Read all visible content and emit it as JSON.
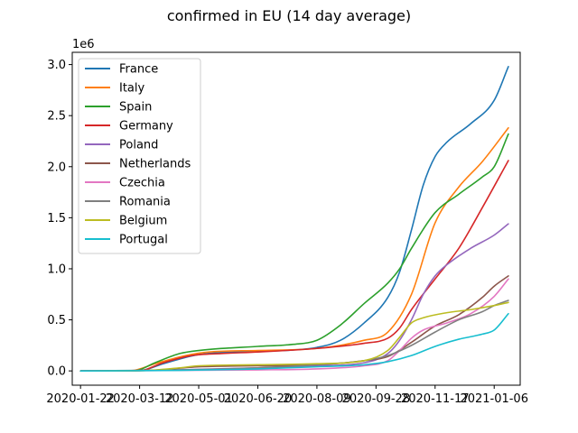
{
  "chart_data": {
    "type": "line",
    "title": "confirmed in EU (14 day average)",
    "xlabel": "",
    "ylabel": "",
    "y_multiplier_label": "1e6",
    "x_ticks": [
      "2020-01-22",
      "2020-03-12",
      "2020-05-01",
      "2020-06-20",
      "2020-08-09",
      "2020-09-28",
      "2020-11-17",
      "2021-01-06"
    ],
    "y_ticks": [
      "0.0",
      "0.5",
      "1.0",
      "1.5",
      "2.0",
      "2.5",
      "3.0"
    ],
    "xlim": [
      "2020-01-15",
      "2021-01-28"
    ],
    "ylim": [
      -0.14,
      3.12
    ],
    "grid": false,
    "legend_position": "top-left",
    "series": [
      {
        "name": "France",
        "color": "#1f77b4",
        "points": [
          [
            "2020-01-22",
            0
          ],
          [
            "2020-03-12",
            0.003
          ],
          [
            "2020-04-01",
            0.07
          ],
          [
            "2020-05-01",
            0.16
          ],
          [
            "2020-06-20",
            0.19
          ],
          [
            "2020-07-20",
            0.205
          ],
          [
            "2020-08-09",
            0.23
          ],
          [
            "2020-08-29",
            0.3
          ],
          [
            "2020-09-18",
            0.47
          ],
          [
            "2020-10-08",
            0.72
          ],
          [
            "2020-10-18",
            0.97
          ],
          [
            "2020-10-28",
            1.38
          ],
          [
            "2020-11-07",
            1.82
          ],
          [
            "2020-11-17",
            2.1
          ],
          [
            "2020-11-27",
            2.24
          ],
          [
            "2020-12-17",
            2.42
          ],
          [
            "2021-01-06",
            2.65
          ],
          [
            "2021-01-18",
            2.98
          ]
        ]
      },
      {
        "name": "Italy",
        "color": "#ff7f0e",
        "points": [
          [
            "2020-01-22",
            0
          ],
          [
            "2020-03-05",
            0.003
          ],
          [
            "2020-03-25",
            0.07
          ],
          [
            "2020-04-20",
            0.15
          ],
          [
            "2020-05-10",
            0.185
          ],
          [
            "2020-06-20",
            0.2
          ],
          [
            "2020-08-09",
            0.22
          ],
          [
            "2020-09-18",
            0.3
          ],
          [
            "2020-10-08",
            0.38
          ],
          [
            "2020-10-28",
            0.75
          ],
          [
            "2020-11-17",
            1.45
          ],
          [
            "2020-12-07",
            1.8
          ],
          [
            "2020-12-27",
            2.05
          ],
          [
            "2021-01-18",
            2.38
          ]
        ]
      },
      {
        "name": "Spain",
        "color": "#2ca02c",
        "points": [
          [
            "2020-01-22",
            0
          ],
          [
            "2020-03-08",
            0.003
          ],
          [
            "2020-03-25",
            0.08
          ],
          [
            "2020-04-15",
            0.17
          ],
          [
            "2020-05-01",
            0.2
          ],
          [
            "2020-06-20",
            0.24
          ],
          [
            "2020-07-20",
            0.26
          ],
          [
            "2020-08-09",
            0.3
          ],
          [
            "2020-08-29",
            0.45
          ],
          [
            "2020-09-18",
            0.66
          ],
          [
            "2020-10-08",
            0.86
          ],
          [
            "2020-10-18",
            1.0
          ],
          [
            "2020-10-28",
            1.2
          ],
          [
            "2020-11-17",
            1.55
          ],
          [
            "2020-12-07",
            1.73
          ],
          [
            "2020-12-27",
            1.9
          ],
          [
            "2021-01-06",
            2.0
          ],
          [
            "2021-01-18",
            2.32
          ]
        ]
      },
      {
        "name": "Germany",
        "color": "#d62728",
        "points": [
          [
            "2020-01-22",
            0
          ],
          [
            "2020-03-12",
            0.003
          ],
          [
            "2020-04-01",
            0.08
          ],
          [
            "2020-04-25",
            0.15
          ],
          [
            "2020-05-20",
            0.17
          ],
          [
            "2020-06-20",
            0.185
          ],
          [
            "2020-08-09",
            0.22
          ],
          [
            "2020-09-18",
            0.27
          ],
          [
            "2020-10-08",
            0.32
          ],
          [
            "2020-10-18",
            0.42
          ],
          [
            "2020-10-28",
            0.6
          ],
          [
            "2020-11-17",
            0.9
          ],
          [
            "2020-12-07",
            1.2
          ],
          [
            "2020-12-27",
            1.6
          ],
          [
            "2021-01-18",
            2.06
          ]
        ]
      },
      {
        "name": "Poland",
        "color": "#9467bd",
        "points": [
          [
            "2020-01-22",
            0
          ],
          [
            "2020-03-25",
            0.005
          ],
          [
            "2020-06-20",
            0.03
          ],
          [
            "2020-08-09",
            0.05
          ],
          [
            "2020-09-18",
            0.08
          ],
          [
            "2020-10-08",
            0.17
          ],
          [
            "2020-10-18",
            0.3
          ],
          [
            "2020-10-28",
            0.5
          ],
          [
            "2020-11-07",
            0.75
          ],
          [
            "2020-11-17",
            0.93
          ],
          [
            "2020-11-27",
            1.04
          ],
          [
            "2020-12-17",
            1.2
          ],
          [
            "2021-01-06",
            1.33
          ],
          [
            "2021-01-18",
            1.44
          ]
        ]
      },
      {
        "name": "Netherlands",
        "color": "#8c564b",
        "points": [
          [
            "2020-01-22",
            0
          ],
          [
            "2020-03-20",
            0.005
          ],
          [
            "2020-05-01",
            0.04
          ],
          [
            "2020-06-20",
            0.05
          ],
          [
            "2020-08-09",
            0.06
          ],
          [
            "2020-09-18",
            0.1
          ],
          [
            "2020-10-08",
            0.14
          ],
          [
            "2020-10-28",
            0.28
          ],
          [
            "2020-11-17",
            0.44
          ],
          [
            "2020-12-07",
            0.55
          ],
          [
            "2020-12-27",
            0.72
          ],
          [
            "2021-01-06",
            0.83
          ],
          [
            "2021-01-18",
            0.93
          ]
        ]
      },
      {
        "name": "Czechia",
        "color": "#e377c2",
        "points": [
          [
            "2020-01-22",
            0
          ],
          [
            "2020-06-20",
            0.01
          ],
          [
            "2020-08-09",
            0.02
          ],
          [
            "2020-09-18",
            0.05
          ],
          [
            "2020-10-08",
            0.1
          ],
          [
            "2020-10-18",
            0.2
          ],
          [
            "2020-10-28",
            0.32
          ],
          [
            "2020-11-07",
            0.4
          ],
          [
            "2020-11-27",
            0.47
          ],
          [
            "2020-12-17",
            0.56
          ],
          [
            "2021-01-06",
            0.73
          ],
          [
            "2021-01-18",
            0.9
          ]
        ]
      },
      {
        "name": "Romania",
        "color": "#7f7f7f",
        "points": [
          [
            "2020-01-22",
            0
          ],
          [
            "2020-04-15",
            0.01
          ],
          [
            "2020-06-20",
            0.03
          ],
          [
            "2020-08-09",
            0.06
          ],
          [
            "2020-09-18",
            0.1
          ],
          [
            "2020-10-08",
            0.15
          ],
          [
            "2020-10-28",
            0.25
          ],
          [
            "2020-11-17",
            0.38
          ],
          [
            "2020-12-07",
            0.5
          ],
          [
            "2020-12-27",
            0.58
          ],
          [
            "2021-01-06",
            0.64
          ],
          [
            "2021-01-18",
            0.69
          ]
        ]
      },
      {
        "name": "Belgium",
        "color": "#bcbd22",
        "points": [
          [
            "2020-01-22",
            0
          ],
          [
            "2020-03-15",
            0.003
          ],
          [
            "2020-04-15",
            0.03
          ],
          [
            "2020-05-01",
            0.05
          ],
          [
            "2020-06-20",
            0.06
          ],
          [
            "2020-08-09",
            0.07
          ],
          [
            "2020-09-18",
            0.1
          ],
          [
            "2020-10-08",
            0.2
          ],
          [
            "2020-10-18",
            0.33
          ],
          [
            "2020-10-28",
            0.47
          ],
          [
            "2020-11-07",
            0.52
          ],
          [
            "2020-11-27",
            0.57
          ],
          [
            "2020-12-17",
            0.6
          ],
          [
            "2021-01-06",
            0.64
          ],
          [
            "2021-01-18",
            0.67
          ]
        ]
      },
      {
        "name": "Portugal",
        "color": "#17becf",
        "points": [
          [
            "2020-01-22",
            0
          ],
          [
            "2020-04-15",
            0.005
          ],
          [
            "2020-06-20",
            0.02
          ],
          [
            "2020-08-09",
            0.04
          ],
          [
            "2020-09-18",
            0.06
          ],
          [
            "2020-10-08",
            0.09
          ],
          [
            "2020-10-28",
            0.15
          ],
          [
            "2020-11-17",
            0.24
          ],
          [
            "2020-12-07",
            0.31
          ],
          [
            "2020-12-27",
            0.36
          ],
          [
            "2021-01-06",
            0.4
          ],
          [
            "2021-01-18",
            0.56
          ]
        ]
      }
    ]
  }
}
